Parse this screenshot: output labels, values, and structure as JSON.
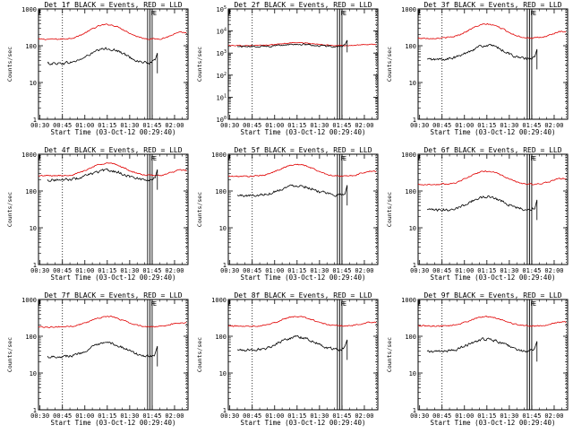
{
  "chart_data": [
    {
      "type": "line",
      "title": "Det 1f BLACK = Events, RED = LLD",
      "xlabel": "Start Time (03-Oct-12 00:29:40)",
      "ylabel": "Counts/sec",
      "x_ticks": [
        "00:30",
        "00:45",
        "01:00",
        "01:15",
        "01:30",
        "01:45",
        "02:00"
      ],
      "y_ticks": [
        "1",
        "10",
        "100",
        "1000"
      ],
      "ylim": [
        1,
        1000
      ],
      "markers": [
        "F",
        "E"
      ],
      "series": [
        {
          "color": "#e00000",
          "base": 150,
          "bump": 2.5
        },
        {
          "color": "#000000",
          "base": 33,
          "bump": 2.5
        }
      ]
    },
    {
      "type": "line",
      "title": "Det 2f BLACK = Events, RED = LLD",
      "xlabel": "Start Time (03-Oct-12 00:29:40)",
      "ylabel": "Counts/sec",
      "x_ticks": [
        "00:30",
        "00:45",
        "01:00",
        "01:15",
        "01:30",
        "01:45",
        "02:00"
      ],
      "y_ticks": [
        "10^0",
        "10^1",
        "10^2",
        "10^3",
        "10^4",
        "10^5"
      ],
      "ylim": [
        1,
        100000
      ],
      "markers": [
        "F",
        "E"
      ],
      "series": [
        {
          "color": "#e00000",
          "base": 2200,
          "bump": 1.35
        },
        {
          "color": "#000000",
          "base": 2000,
          "bump": 1.25
        }
      ]
    },
    {
      "type": "line",
      "title": "Det 3f BLACK = Events, RED = LLD",
      "xlabel": "Start Time (03-Oct-12 00:29:40)",
      "ylabel": "Counts/sec",
      "x_ticks": [
        "00:30",
        "00:45",
        "01:00",
        "01:15",
        "01:30",
        "01:45",
        "02:00"
      ],
      "y_ticks": [
        "1",
        "10",
        "100",
        "1000"
      ],
      "ylim": [
        1,
        1000
      ],
      "markers": [
        "F",
        "E"
      ],
      "series": [
        {
          "color": "#e00000",
          "base": 160,
          "bump": 2.4
        },
        {
          "color": "#000000",
          "base": 42,
          "bump": 2.4
        }
      ]
    },
    {
      "type": "line",
      "title": "Det 4f BLACK = Events, RED = LLD",
      "xlabel": "Start Time (03-Oct-12 00:29:40)",
      "ylabel": "Counts/sec",
      "x_ticks": [
        "00:30",
        "00:45",
        "01:00",
        "01:15",
        "01:30",
        "01:45",
        "02:00"
      ],
      "y_ticks": [
        "1",
        "10",
        "100",
        "1000"
      ],
      "ylim": [
        1,
        1000
      ],
      "markers": [
        "F",
        "E"
      ],
      "series": [
        {
          "color": "#e00000",
          "base": 260,
          "bump": 2.2
        },
        {
          "color": "#000000",
          "base": 200,
          "bump": 1.8
        }
      ]
    },
    {
      "type": "line",
      "title": "Det 5f BLACK = Events, RED = LLD",
      "xlabel": "Start Time (03-Oct-12 00:29:40)",
      "ylabel": "Counts/sec",
      "x_ticks": [
        "00:30",
        "00:45",
        "01:00",
        "01:15",
        "01:30",
        "01:45",
        "02:00"
      ],
      "y_ticks": [
        "1",
        "10",
        "100",
        "1000"
      ],
      "ylim": [
        1,
        1000
      ],
      "markers": [
        "F",
        "E"
      ],
      "series": [
        {
          "color": "#e00000",
          "base": 250,
          "bump": 2.1
        },
        {
          "color": "#000000",
          "base": 75,
          "bump": 1.9
        }
      ]
    },
    {
      "type": "line",
      "title": "Det 6f BLACK = Events, RED = LLD",
      "xlabel": "Start Time (03-Oct-12 00:29:40)",
      "ylabel": "Counts/sec",
      "x_ticks": [
        "00:30",
        "00:45",
        "01:00",
        "01:15",
        "01:30",
        "01:45",
        "02:00"
      ],
      "y_ticks": [
        "1",
        "10",
        "100",
        "1000"
      ],
      "ylim": [
        1,
        1000
      ],
      "markers": [
        "F",
        "E"
      ],
      "series": [
        {
          "color": "#e00000",
          "base": 150,
          "bump": 2.3
        },
        {
          "color": "#000000",
          "base": 30,
          "bump": 2.3
        }
      ]
    },
    {
      "type": "line",
      "title": "Det 7f BLACK = Events, RED = LLD",
      "xlabel": "Start Time (03-Oct-12 00:29:40)",
      "ylabel": "Counts/sec",
      "x_ticks": [
        "00:30",
        "00:45",
        "01:00",
        "01:15",
        "01:30",
        "01:45",
        "02:00"
      ],
      "y_ticks": [
        "1",
        "10",
        "100",
        "1000"
      ],
      "ylim": [
        1,
        1000
      ],
      "markers": [
        "F",
        "E"
      ],
      "series": [
        {
          "color": "#e00000",
          "base": 180,
          "bump": 1.9
        },
        {
          "color": "#000000",
          "base": 28,
          "bump": 2.3
        }
      ]
    },
    {
      "type": "line",
      "title": "Det 8f BLACK = Events, RED = LLD",
      "xlabel": "Start Time (03-Oct-12 00:29:40)",
      "ylabel": "Counts/sec",
      "x_ticks": [
        "00:30",
        "00:45",
        "01:00",
        "01:15",
        "01:30",
        "01:45",
        "02:00"
      ],
      "y_ticks": [
        "1",
        "10",
        "100",
        "1000"
      ],
      "ylim": [
        1,
        1000
      ],
      "markers": [
        "F",
        "E"
      ],
      "series": [
        {
          "color": "#e00000",
          "base": 190,
          "bump": 1.8
        },
        {
          "color": "#000000",
          "base": 42,
          "bump": 2.3
        }
      ]
    },
    {
      "type": "line",
      "title": "Det 9f BLACK = Events, RED = LLD",
      "xlabel": "Start Time (03-Oct-12 00:29:40)",
      "ylabel": "Counts/sec",
      "x_ticks": [
        "00:30",
        "00:45",
        "01:00",
        "01:15",
        "01:30",
        "01:45",
        "02:00"
      ],
      "y_ticks": [
        "1",
        "10",
        "100",
        "1000"
      ],
      "ylim": [
        1,
        1000
      ],
      "markers": [
        "F",
        "E"
      ],
      "series": [
        {
          "color": "#e00000",
          "base": 190,
          "bump": 1.8
        },
        {
          "color": "#000000",
          "base": 38,
          "bump": 2.2
        }
      ]
    }
  ]
}
